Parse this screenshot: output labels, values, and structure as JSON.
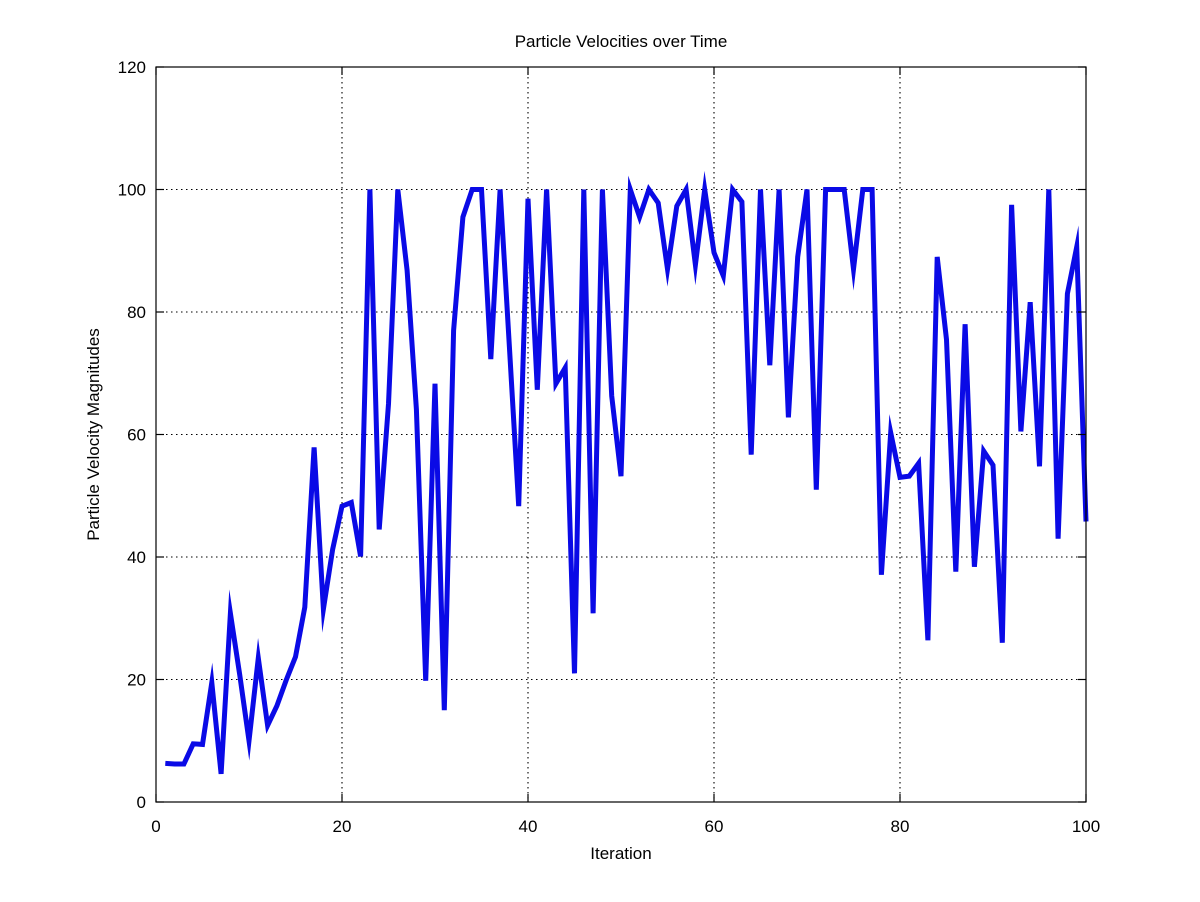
{
  "chart_data": {
    "type": "line",
    "title": "Particle Velocities over Time",
    "xlabel": "Iteration",
    "ylabel": "Particle Velocity Magnitudes",
    "xlim": [
      0,
      100
    ],
    "ylim": [
      0,
      120
    ],
    "xticks": [
      0,
      20,
      40,
      60,
      80,
      100
    ],
    "yticks": [
      0,
      20,
      40,
      60,
      80,
      100,
      120
    ],
    "grid": true,
    "series": [
      {
        "color": "#0a0ae6",
        "x": [
          1,
          2,
          3,
          4,
          5,
          6,
          7,
          8,
          9,
          10,
          11,
          12,
          13,
          14,
          15,
          16,
          17,
          18,
          19,
          20,
          21,
          22,
          23,
          24,
          25,
          26,
          27,
          28,
          29,
          30,
          31,
          32,
          33,
          34,
          35,
          36,
          37,
          38,
          39,
          40,
          41,
          42,
          43,
          44,
          45,
          46,
          47,
          48,
          49,
          50,
          51,
          52,
          53,
          54,
          55,
          56,
          57,
          58,
          59,
          60,
          61,
          62,
          63,
          64,
          65,
          66,
          67,
          68,
          69,
          70,
          71,
          72,
          73,
          74,
          75,
          76,
          77,
          78,
          79,
          80,
          81,
          82,
          83,
          84,
          85,
          86,
          87,
          88,
          89,
          90,
          91,
          92,
          93,
          94,
          95,
          96,
          97,
          98,
          99,
          100
        ],
        "values": [
          6.3,
          6.2,
          6.2,
          9.5,
          9.4,
          19.5,
          4.6,
          30.8,
          20.8,
          10.0,
          23.5,
          12.5,
          15.7,
          19.9,
          23.7,
          31.8,
          57.9,
          31.5,
          41.3,
          48.3,
          48.9,
          40.1,
          100,
          44.5,
          65.0,
          100,
          86.8,
          64.1,
          19.8,
          68.3,
          15.0,
          77.0,
          95.5,
          100,
          100,
          72.3,
          100,
          74.3,
          48.3,
          98.5,
          67.3,
          100,
          68.3,
          70.9,
          21.0,
          100,
          30.8,
          100,
          66.3,
          53.2,
          100,
          95.5,
          100,
          97.8,
          87.0,
          97.3,
          100,
          87.7,
          100,
          89.7,
          85.9,
          100,
          98.0,
          56.7,
          100,
          71.3,
          100,
          62.8,
          89.0,
          100,
          51.0,
          100,
          100,
          100,
          87.0,
          100,
          100,
          37.1,
          60.3,
          53.0,
          53.2,
          55.3,
          26.4,
          89.0,
          75.5,
          37.6,
          78.0,
          38.4,
          57.3,
          55.0,
          26.0,
          97.5,
          60.5,
          81.6,
          54.8,
          100,
          43.0,
          83.0,
          90.6,
          45.8
        ]
      }
    ]
  }
}
